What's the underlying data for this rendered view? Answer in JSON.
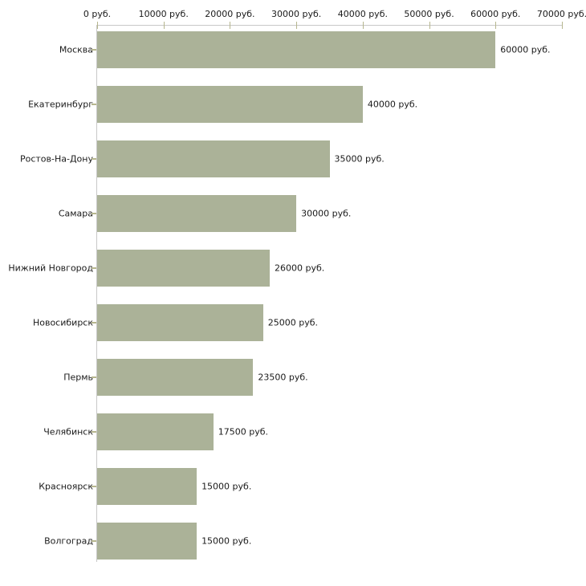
{
  "chart_data": {
    "type": "bar",
    "orientation": "horizontal",
    "title": "",
    "xlabel": "",
    "ylabel": "",
    "unit": "руб.",
    "categories": [
      "Москва",
      "Екатеринбург",
      "Ростов-На-Дону",
      "Самара",
      "Нижний Новгород",
      "Новосибирск",
      "Пермь",
      "Челябинск",
      "Красноярск",
      "Волгоград"
    ],
    "values": [
      60000,
      40000,
      35000,
      30000,
      26000,
      25000,
      23500,
      17500,
      15000,
      15000
    ],
    "value_labels": [
      "60000 руб.",
      "40000 руб.",
      "35000 руб.",
      "30000 руб.",
      "26000 руб.",
      "25000 руб.",
      "23500 руб.",
      "17500 руб.",
      "15000 руб.",
      "15000 руб."
    ],
    "x_ticks": [
      0,
      10000,
      20000,
      30000,
      40000,
      50000,
      60000,
      70000
    ],
    "x_tick_labels": [
      "0 руб.",
      "10000 руб.",
      "20000 руб.",
      "30000 руб.",
      "40000 руб.",
      "50000 руб.",
      "60000 руб.",
      "70000 руб."
    ],
    "xlim": [
      0,
      70000
    ],
    "grid": false,
    "legend": false,
    "colors": {
      "bar": "#abb298",
      "axis": "#c8c8c8",
      "tick": "#b6b68e",
      "text": "#1a1a1a",
      "background": "#ffffff"
    }
  }
}
